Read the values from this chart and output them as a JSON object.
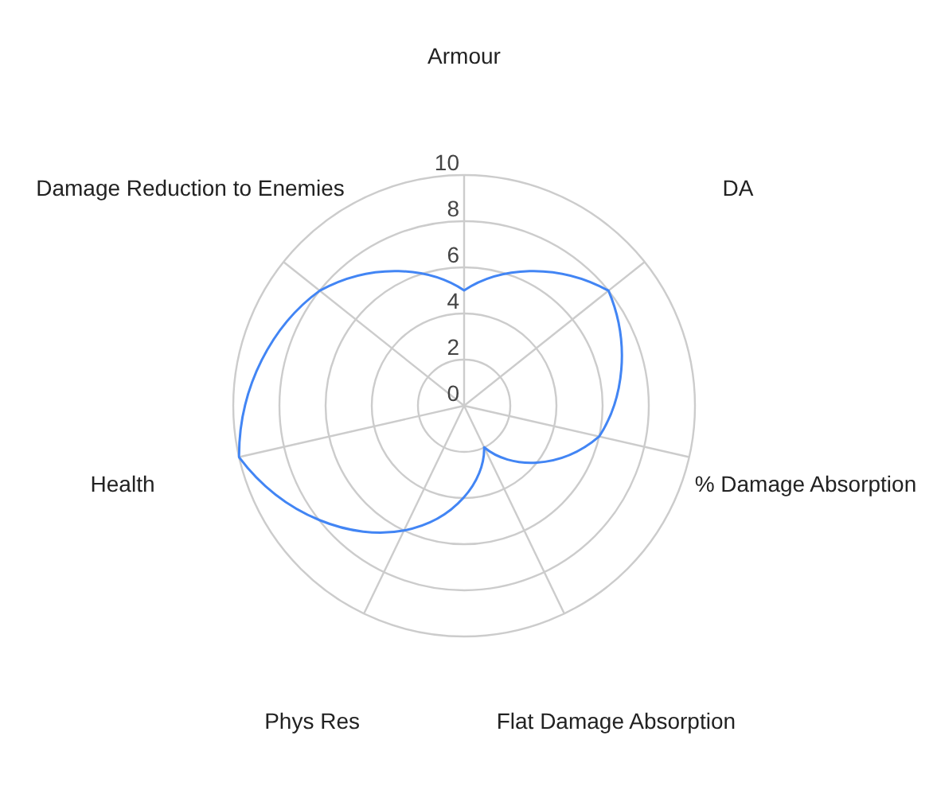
{
  "chart_data": {
    "type": "radar",
    "categories": [
      "Armour",
      "DA",
      "% Damage Absorption",
      "Flat Damage Absorption",
      "Phys Res",
      "Health",
      "Damage Reduction to Enemies"
    ],
    "series": [
      {
        "color": "#4285f4",
        "values": [
          5,
          8,
          6,
          2,
          6,
          10,
          8
        ]
      }
    ],
    "ylim": [
      0,
      10
    ],
    "yticks": [
      0,
      2,
      4,
      6,
      8,
      10
    ],
    "grid": true,
    "legend": false,
    "marker": "none"
  }
}
